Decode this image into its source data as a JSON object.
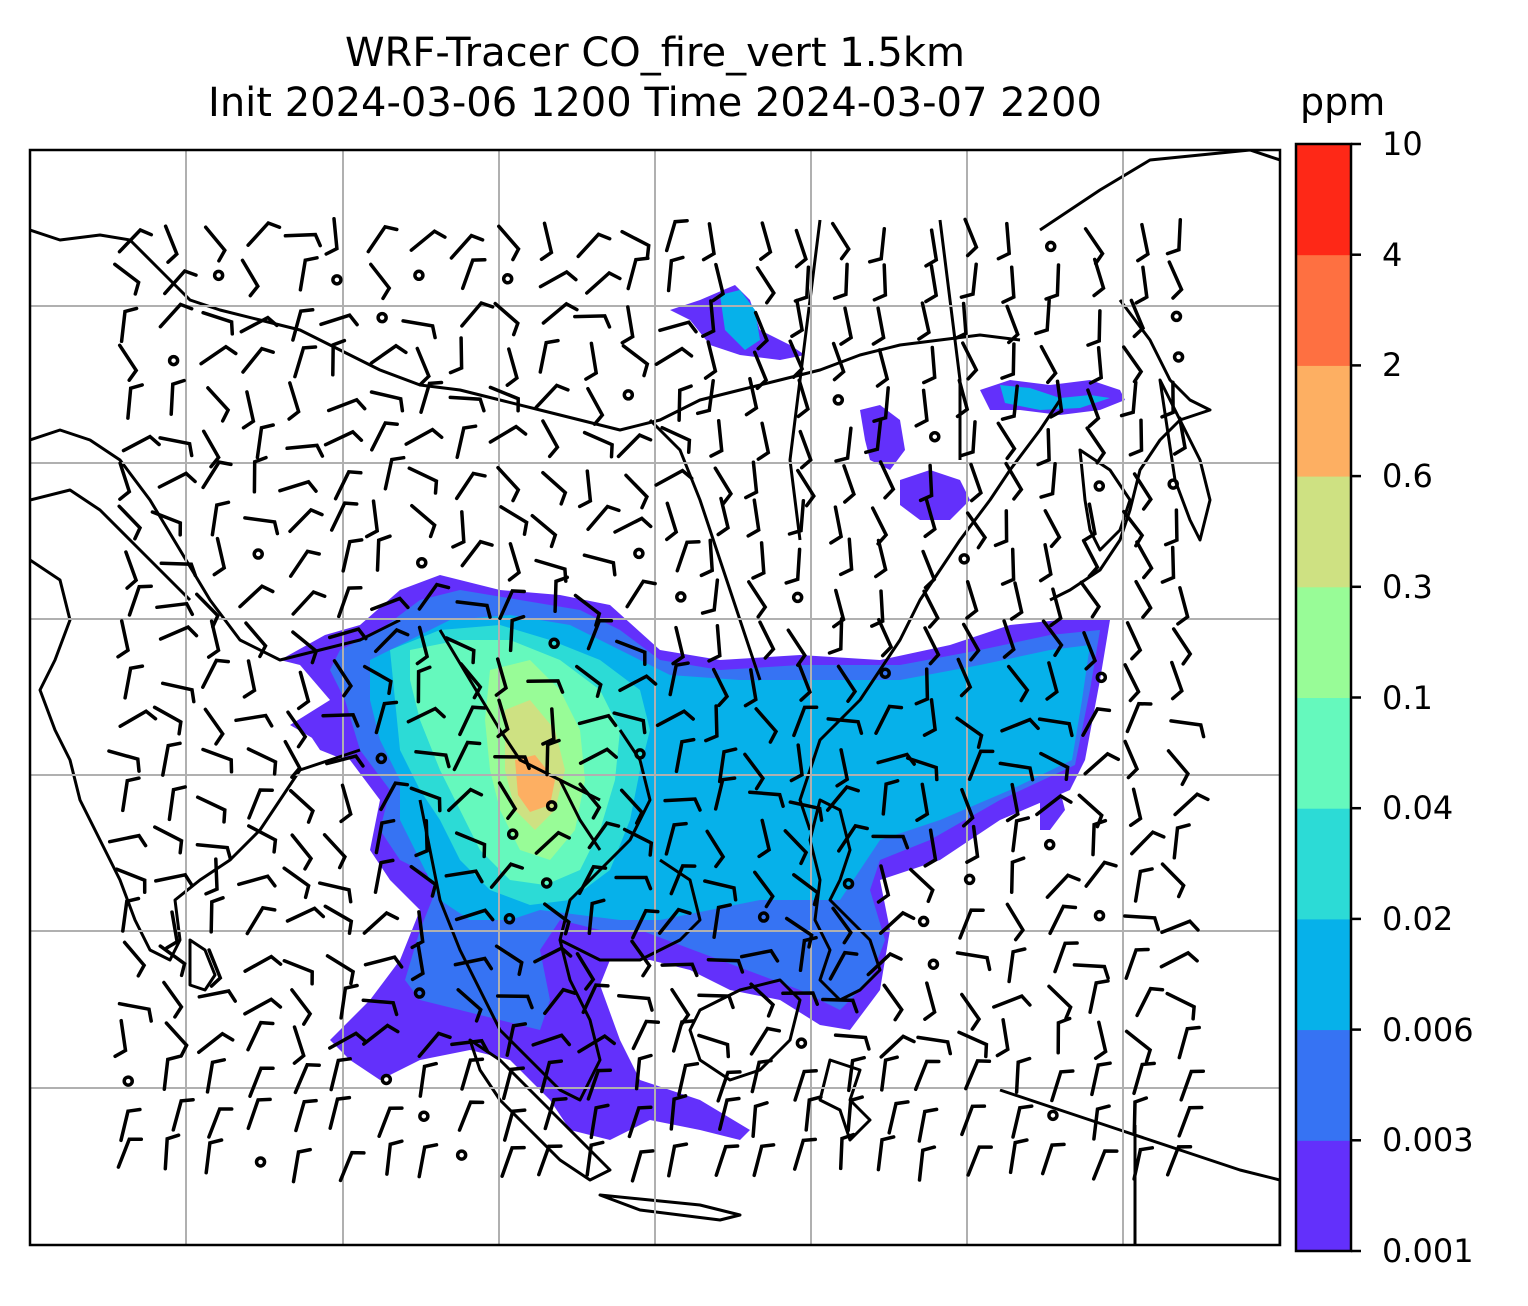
{
  "title": {
    "line1": "WRF-Tracer CO_fire_vert 1.5km",
    "line2": "Init 2024-03-06 1200 Time 2024-03-07 2200"
  },
  "colorbar": {
    "unit": "ppm",
    "tick_labels": [
      "0.001",
      "0.003",
      "0.006",
      "0.02",
      "0.04",
      "0.1",
      "0.3",
      "0.6",
      "2",
      "4",
      "10"
    ],
    "colors": [
      "#6330fb",
      "#3673f3",
      "#06b1ea",
      "#2cdbd6",
      "#65f9bd",
      "#98fc97",
      "#cee182",
      "#fdaf62",
      "#fe7041",
      "#fe2817"
    ]
  },
  "map": {
    "gridlines": true,
    "field": "CO_fire_vert",
    "level": "1.5km"
  }
}
